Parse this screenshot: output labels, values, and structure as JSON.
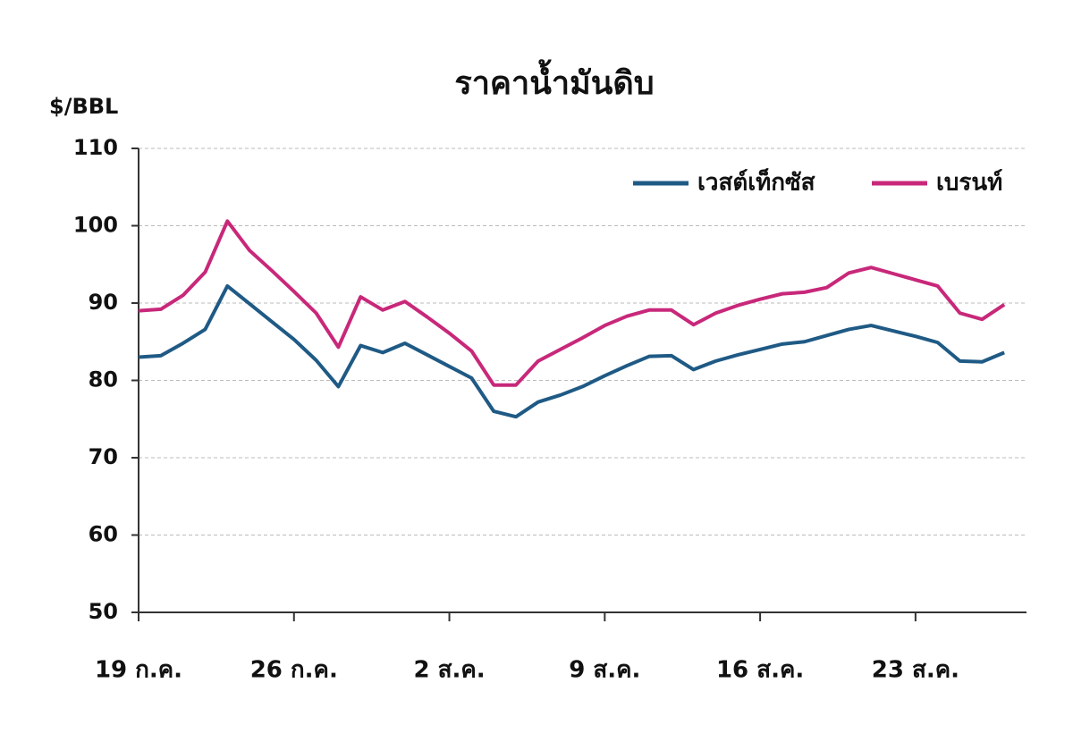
{
  "chart_data": {
    "type": "line",
    "title": "ราคาน้ำมันดิบ",
    "y_label": "$/BBL",
    "categories": [
      "19 ก.ค.",
      null,
      null,
      null,
      null,
      null,
      null,
      "26 ก.ค.",
      null,
      null,
      null,
      null,
      null,
      null,
      "2 ส.ค.",
      null,
      null,
      null,
      null,
      null,
      null,
      "9 ส.ค.",
      null,
      null,
      null,
      null,
      null,
      null,
      "16 ส.ค.",
      null,
      null,
      null,
      null,
      null,
      null,
      "23 ส.ค.",
      null,
      null,
      null,
      null
    ],
    "series": [
      {
        "name": "เวสต์เท็กซัส",
        "color": "#1f5a85",
        "values": [
          83,
          83.2,
          84.8,
          86.6,
          92.2,
          89.9,
          87.6,
          85.3,
          82.6,
          79.2,
          84.5,
          83.6,
          84.8,
          83.3,
          81.8,
          80.3,
          76,
          75.3,
          77.2,
          78.1,
          79.2,
          80.6,
          81.9,
          83.1,
          83.2,
          81.4,
          82.5,
          83.3,
          84,
          84.7,
          85,
          85.8,
          86.6,
          87.1,
          86.4,
          85.7,
          84.9,
          82.5,
          82.4,
          83.6
        ]
      },
      {
        "name": "เบรนท์",
        "color": "#c8287a",
        "values": [
          89,
          89.2,
          91,
          94,
          100.6,
          96.8,
          94.2,
          91.5,
          88.7,
          84.3,
          90.8,
          89.1,
          90.2,
          88.2,
          86.1,
          83.8,
          79.4,
          79.4,
          82.5,
          84,
          85.5,
          87.1,
          88.3,
          89.1,
          89.1,
          87.2,
          88.7,
          89.7,
          90.5,
          91.2,
          91.4,
          92,
          93.9,
          94.6,
          93.8,
          93,
          92.2,
          88.7,
          87.9,
          89.8
        ]
      }
    ],
    "ylim": [
      50,
      110
    ],
    "yticks": [
      50,
      60,
      70,
      80,
      90,
      100,
      110
    ],
    "grid": true,
    "legend": "top-right"
  }
}
